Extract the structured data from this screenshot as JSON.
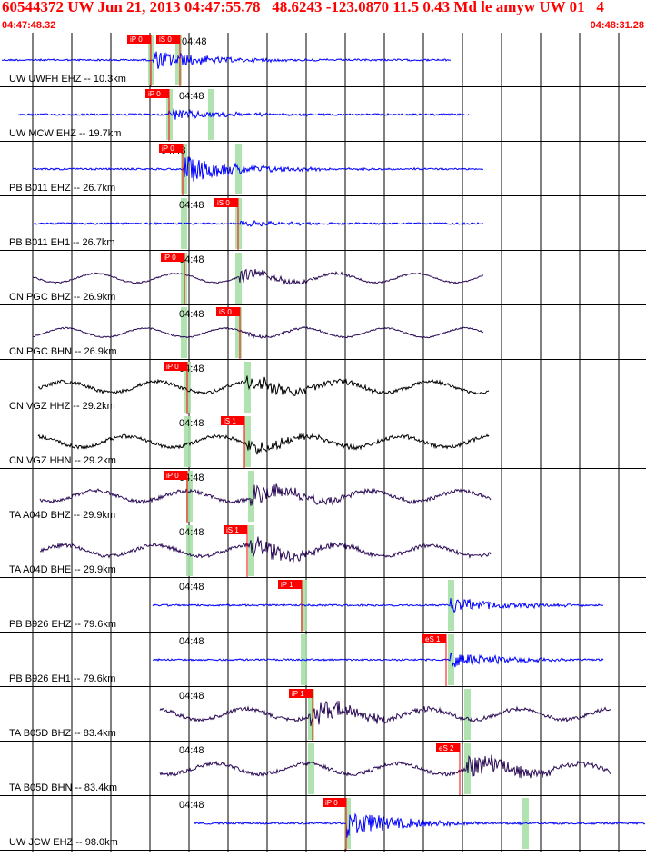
{
  "header": {
    "title": "60544372 UW Jun 21, 2013 04:47:55.78   48.6243 -123.0870 11.5 0.43 Md le amyw UW 01   4",
    "start_time": "04:47:48.32",
    "end_time": "04:48:31.28"
  },
  "colors": {
    "header_red": "#ff0000",
    "trace_blue": "#0000ff",
    "trace_purple": "#2a0a55",
    "trace_black": "#000000",
    "pick_red": "#ff0000",
    "highlight_green": "#a8e0a8",
    "gridline": "#000000"
  },
  "minute_marker": "04:48",
  "traces": [
    {
      "label": "UW UWFH EHZ -- 10.3km",
      "color": "blue",
      "picks": [
        "iP 0",
        "iS 0"
      ]
    },
    {
      "label": "UW MCW EHZ -- 19.7km",
      "color": "blue",
      "picks": [
        "iP 0"
      ]
    },
    {
      "label": "PB B011 EHZ -- 26.7km",
      "color": "blue",
      "picks": [
        "iP 0"
      ]
    },
    {
      "label": "PB B011 EH1 -- 26.7km",
      "color": "blue",
      "picks": [
        "iS 0"
      ]
    },
    {
      "label": "CN PGC BHZ -- 26.9km",
      "color": "purple",
      "picks": [
        "iP 0"
      ]
    },
    {
      "label": "CN PGC BHN -- 26.9km",
      "color": "purple",
      "picks": [
        "iS 0"
      ]
    },
    {
      "label": "CN VGZ HHZ -- 29.2km",
      "color": "black",
      "picks": [
        "iP 0"
      ]
    },
    {
      "label": "CN VGZ HHN -- 29.2km",
      "color": "black",
      "picks": [
        "iS 1"
      ]
    },
    {
      "label": "TA A04D BHZ -- 29.9km",
      "color": "purple",
      "picks": [
        "iP 0"
      ]
    },
    {
      "label": "TA A04D BHE -- 29.9km",
      "color": "purple",
      "picks": [
        "iS 1"
      ]
    },
    {
      "label": "PB B926 EHZ -- 79.6km",
      "color": "blue",
      "picks": [
        "iP 1"
      ]
    },
    {
      "label": "PB B926 EH1 -- 79.6km",
      "color": "blue",
      "picks": [
        "eS 1"
      ]
    },
    {
      "label": "TA B05D BHZ -- 83.4km",
      "color": "purple",
      "picks": [
        "iP 1"
      ]
    },
    {
      "label": "TA B05D BHN -- 83.4km",
      "color": "purple",
      "picks": [
        "eS 2"
      ]
    },
    {
      "label": "UW JCW EHZ -- 98.0km",
      "color": "blue",
      "picks": [
        "iP 0"
      ]
    }
  ]
}
